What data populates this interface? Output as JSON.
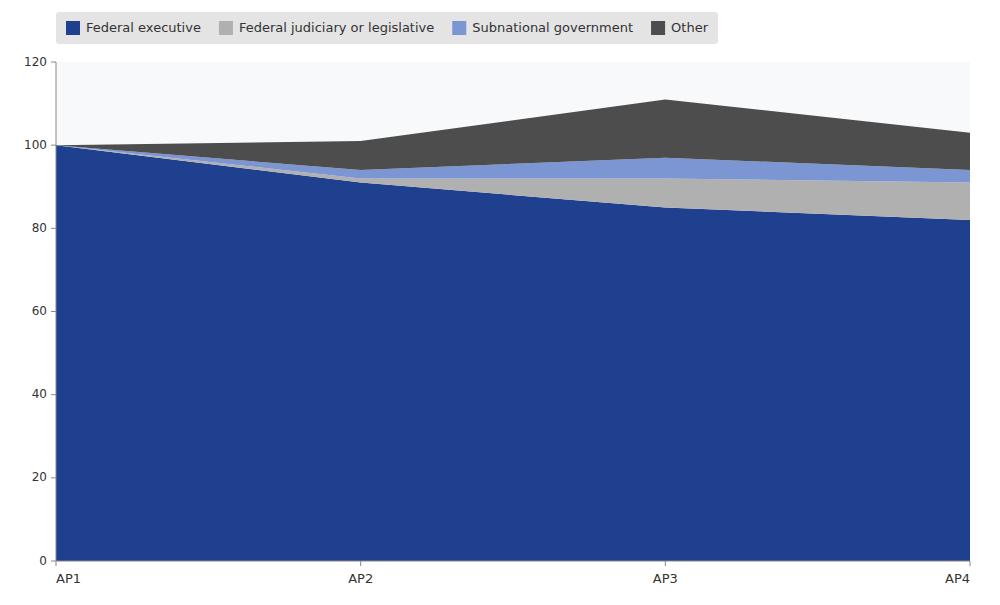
{
  "chart_data": {
    "type": "area",
    "stacked": true,
    "categories": [
      "AP1",
      "AP2",
      "AP3",
      "AP4"
    ],
    "series": [
      {
        "name": "Federal executive",
        "color": "#1F3F8F",
        "values": [
          100,
          91,
          85,
          82
        ]
      },
      {
        "name": "Federal judiciary or legislative",
        "color": "#B0B0B0",
        "values": [
          0,
          1,
          7,
          9
        ]
      },
      {
        "name": "Subnational government",
        "color": "#7B96D2",
        "values": [
          0,
          2,
          5,
          3
        ]
      },
      {
        "name": "Other",
        "color": "#4D4D4D",
        "values": [
          0,
          7,
          14,
          9
        ]
      }
    ],
    "ylim": [
      0,
      120
    ],
    "yticks": [
      0,
      20,
      40,
      60,
      80,
      100,
      120
    ],
    "grid": false,
    "legend": "upper left"
  }
}
